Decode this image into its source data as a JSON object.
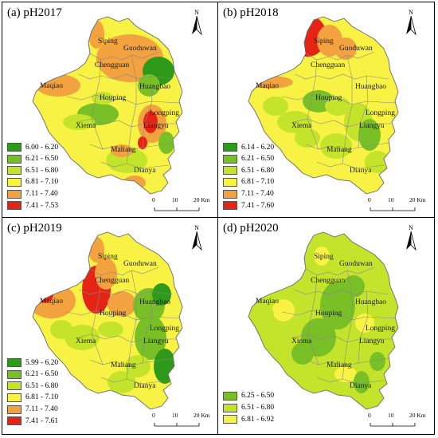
{
  "colors": {
    "c1": "#2e9a1a",
    "c2": "#78c026",
    "c3": "#c4e42c",
    "c4": "#f8f244",
    "c5": "#f2a23e",
    "c6": "#e62416",
    "boundary": "#888888"
  },
  "towns": [
    "Siping",
    "Guoduwan",
    "Chengguan",
    "Maqiao",
    "Huangbao",
    "Houping",
    "Longping",
    "Xiema",
    "Liangyu",
    "Maliang",
    "Dianya"
  ],
  "north_label": "N",
  "scale": {
    "t0": "0",
    "t1": "10",
    "t2": "20 Km"
  },
  "panels": [
    {
      "title": "(a) pH2017",
      "legend": [
        {
          "label": "6.00 - 6.20",
          "color": "#2e9a1a"
        },
        {
          "label": "6.21 - 6.50",
          "color": "#78c026"
        },
        {
          "label": "6.51 - 6.80",
          "color": "#c4e42c"
        },
        {
          "label": "6.81 - 7.10",
          "color": "#f8f244"
        },
        {
          "label": "7.11 - 7.40",
          "color": "#f2a23e"
        },
        {
          "label": "7.41 - 7.53",
          "color": "#e62416"
        }
      ]
    },
    {
      "title": "(b) pH2018",
      "legend": [
        {
          "label": "6.14 - 6.20",
          "color": "#2e9a1a"
        },
        {
          "label": "6.21 - 6.50",
          "color": "#78c026"
        },
        {
          "label": "6.51 - 6.80",
          "color": "#c4e42c"
        },
        {
          "label": "6.81 - 7.10",
          "color": "#f8f244"
        },
        {
          "label": "7.11 - 7.40",
          "color": "#f2a23e"
        },
        {
          "label": "7.41 - 7.60",
          "color": "#e62416"
        }
      ]
    },
    {
      "title": "(c) pH2019",
      "legend": [
        {
          "label": "5.99 - 6.20",
          "color": "#2e9a1a"
        },
        {
          "label": "6.21 - 6.50",
          "color": "#78c026"
        },
        {
          "label": "6.51 - 6.80",
          "color": "#c4e42c"
        },
        {
          "label": "6.81 - 7.10",
          "color": "#f8f244"
        },
        {
          "label": "7.11 - 7.40",
          "color": "#f2a23e"
        },
        {
          "label": "7.41 - 7.61",
          "color": "#e62416"
        }
      ]
    },
    {
      "title": "(d) pH2020",
      "legend": [
        {
          "label": "6.25 - 6.50",
          "color": "#78c026"
        },
        {
          "label": "6.51 - 6.80",
          "color": "#c4e42c"
        },
        {
          "label": "6.81 - 6.92",
          "color": "#f8f244"
        }
      ]
    }
  ]
}
